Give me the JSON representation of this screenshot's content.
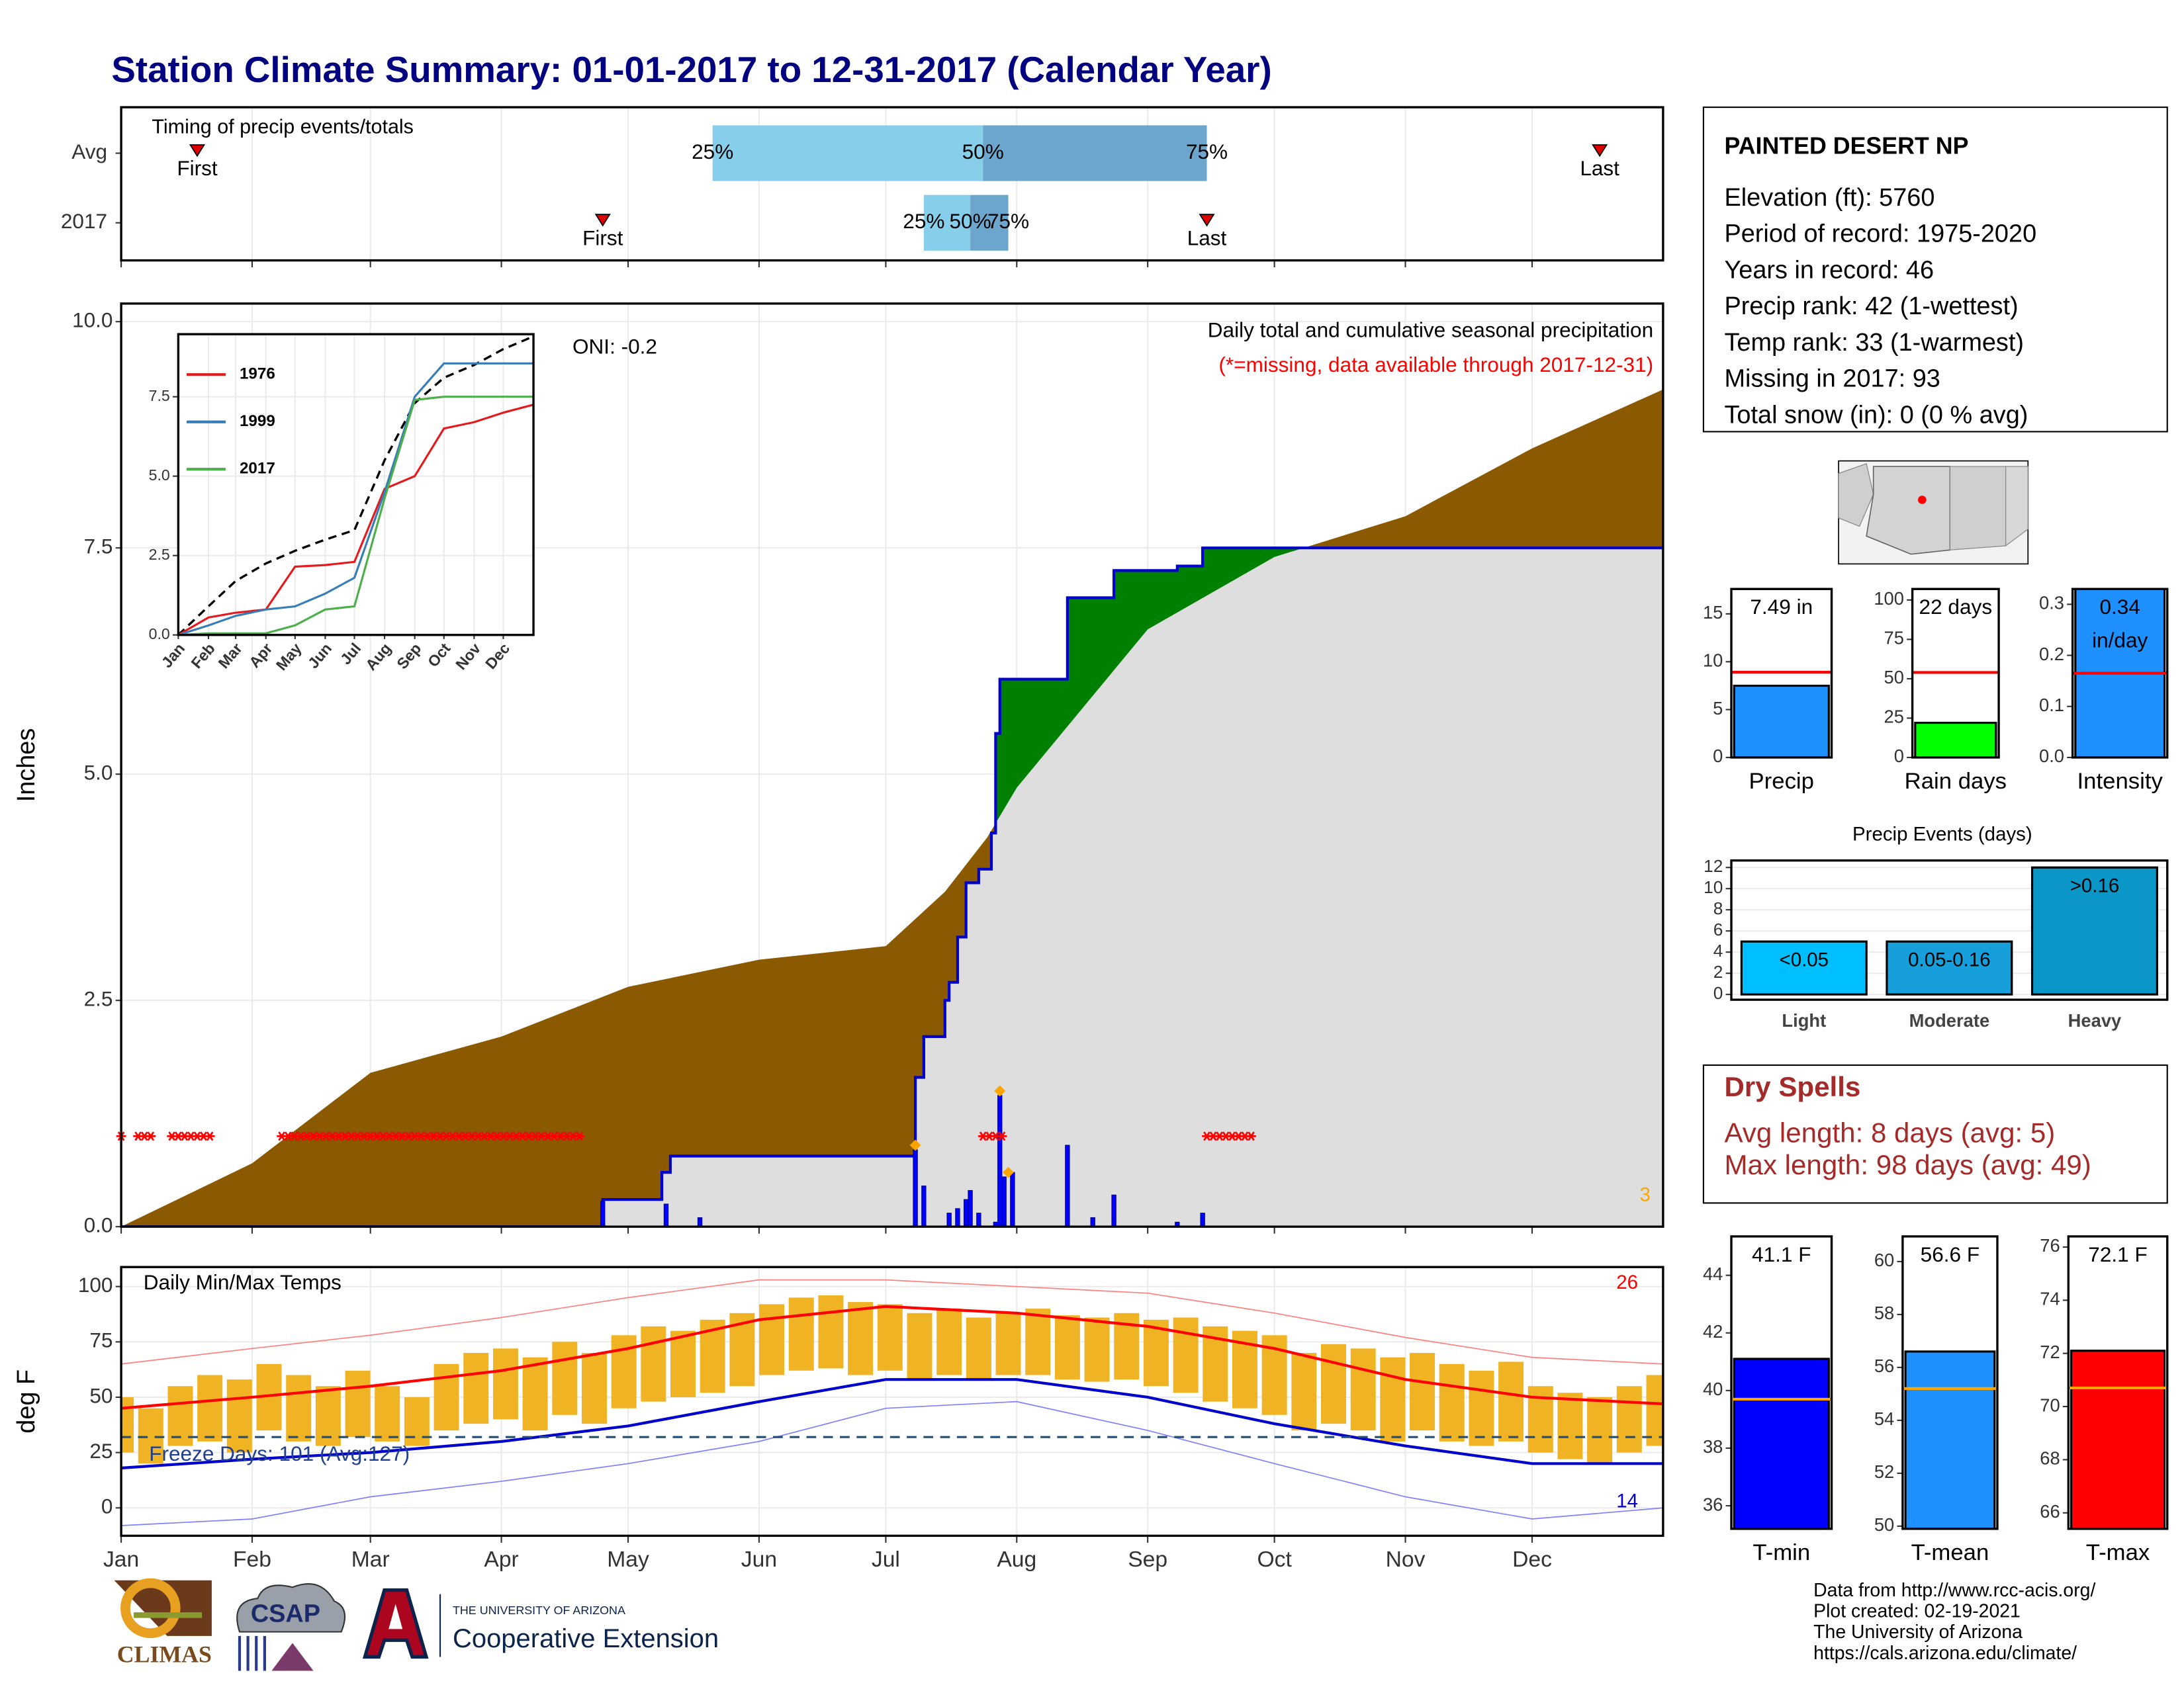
{
  "title": "Station Climate Summary: 01-01-2017 to 12-31-2017 (Calendar Year)",
  "station": {
    "name": "PAINTED DESERT NP",
    "lines": [
      "Elevation (ft): 5760",
      "Period of record: 1975-2020",
      "Years in record: 46",
      "Precip rank: 42 (1-wettest)",
      "Temp rank: 33 (1-warmest)",
      "Missing in 2017: 93",
      "Total snow (in): 0 (0 % avg)"
    ]
  },
  "dry_spells": {
    "title": "Dry Spells",
    "lines": [
      "Avg length: 8 days (avg: 5)",
      "Max length: 98 days (avg: 49)"
    ]
  },
  "logos": {
    "climas": "CLIMAS",
    "csap": "CSAP",
    "university": "THE UNIVERSITY OF ARIZONA",
    "extension": "Cooperative Extension"
  },
  "footer": [
    "Data from http://www.rcc-acis.org/",
    "Plot created: 02-19-2021",
    "The University of Arizona",
    "https://cals.arizona.edu/climate/"
  ],
  "chart_data": [
    {
      "type": "timing",
      "title": "Timing of precip events/totals",
      "xlim": [
        0,
        365
      ],
      "xticks": [
        0,
        31,
        59,
        90,
        120,
        151,
        181,
        212,
        243,
        273,
        304,
        334
      ],
      "labels": [
        "First",
        "25%",
        "50%",
        "75%",
        "Last"
      ],
      "colors": [
        "#87ceeb",
        "#6ca6cd"
      ],
      "marker_color": "#dd0000",
      "series": [
        {
          "name": "Avg",
          "values": [
            18,
            140,
            204,
            257,
            350
          ]
        },
        {
          "name": "2017",
          "values": [
            114,
            190,
            201,
            210,
            257
          ]
        }
      ]
    },
    {
      "type": "cumulative",
      "ylabel": "Inches",
      "xlim": [
        0,
        365
      ],
      "ylim": [
        0,
        10.2
      ],
      "xticks": [
        0,
        31,
        59,
        90,
        120,
        151,
        181,
        212,
        243,
        273,
        304,
        334
      ],
      "yticks": [
        {
          "value": 0,
          "label": "0.0"
        },
        2.5,
        {
          "value": 5,
          "label": "5.0"
        },
        7.5,
        {
          "value": 10,
          "label": "10.0"
        }
      ],
      "grid": true,
      "oni": "ONI: -0.2",
      "subtitle": "Daily total and cumulative seasonal precipitation",
      "missing_note": "(*=missing, data available through 2017-12-31)",
      "count": 3,
      "average": {
        "x": [
          0,
          31,
          59,
          90,
          120,
          151,
          181,
          195,
          205,
          212,
          243,
          273,
          304,
          334,
          365
        ],
        "values": [
          0,
          0.7,
          1.7,
          2.1,
          2.65,
          2.95,
          3.1,
          3.7,
          4.3,
          4.85,
          6.6,
          7.4,
          7.85,
          8.6,
          9.25
        ],
        "color": "#8b5a00"
      },
      "observed": {
        "x": [
          0,
          114,
          128,
          130,
          188,
          190,
          195,
          196,
          198,
          200,
          203,
          206,
          207,
          208,
          224,
          235,
          250,
          256,
          365
        ],
        "values": [
          0,
          0.3,
          0.6,
          0.78,
          1.65,
          2.1,
          2.5,
          2.7,
          3.2,
          3.8,
          3.95,
          4.35,
          5.45,
          6.05,
          6.95,
          7.25,
          7.3,
          7.5,
          7.5
        ],
        "color": "#0000cd",
        "above_color": "#008000",
        "below_color": "#dedede"
      },
      "daily": {
        "x": [
          114,
          129,
          137,
          188,
          190,
          196,
          198,
          200,
          201,
          203,
          207,
          208,
          209,
          211,
          224,
          230,
          235,
          250,
          256
        ],
        "values": [
          0.28,
          0.25,
          0.1,
          0.85,
          0.45,
          0.15,
          0.2,
          0.3,
          0.4,
          0.15,
          0.05,
          1.45,
          0.55,
          0.6,
          0.9,
          0.1,
          0.35,
          0.05,
          0.15
        ],
        "color": "#0000ff"
      },
      "extremes": {
        "x": [
          188,
          208,
          210
        ],
        "values": [
          0.9,
          1.5,
          0.6
        ],
        "color": "#ffa500"
      },
      "missing": {
        "ranges": [
          [
            0,
            1
          ],
          [
            4,
            8
          ],
          [
            12,
            21
          ],
          [
            38,
            109
          ],
          [
            204,
            209
          ],
          [
            257,
            268
          ]
        ],
        "y": 1.0,
        "color": "#ff0000"
      }
    },
    {
      "type": "line",
      "xlim": [
        0,
        365
      ],
      "ylim": [
        0,
        9.47
      ],
      "yticks": [
        {
          "value": 0,
          "label": "0.0"
        },
        2.5,
        {
          "value": 5,
          "label": "5.0"
        },
        7.5
      ],
      "xticks": [
        {
          "value": 0,
          "label": "Jan"
        },
        {
          "value": 31,
          "label": "Feb"
        },
        {
          "value": 59,
          "label": "Mar"
        },
        {
          "value": 90,
          "label": "Apr"
        },
        {
          "value": 120,
          "label": "May"
        },
        {
          "value": 151,
          "label": "Jun"
        },
        {
          "value": 181,
          "label": "Jul"
        },
        {
          "value": 212,
          "label": "Aug"
        },
        {
          "value": 243,
          "label": "Sep"
        },
        {
          "value": 273,
          "label": "Oct"
        },
        {
          "value": 304,
          "label": "Nov"
        },
        {
          "value": 334,
          "label": "Dec"
        }
      ],
      "x": [
        0,
        31,
        59,
        90,
        120,
        151,
        181,
        212,
        243,
        273,
        304,
        334,
        365
      ],
      "series": [
        {
          "name": "1976",
          "color": "#e41a1c",
          "values": [
            0,
            0.55,
            0.7,
            0.8,
            2.15,
            2.2,
            2.3,
            4.6,
            5.0,
            6.5,
            6.7,
            7.0,
            7.25
          ]
        },
        {
          "name": "1999",
          "color": "#377eb8",
          "values": [
            0,
            0.3,
            0.6,
            0.8,
            0.9,
            1.3,
            1.8,
            4.5,
            7.5,
            8.55,
            8.55,
            8.55,
            8.55
          ]
        },
        {
          "name": "2017",
          "color": "#4daf4a",
          "values": [
            0,
            0.05,
            0.05,
            0.05,
            0.3,
            0.8,
            0.9,
            4.3,
            7.4,
            7.5,
            7.5,
            7.5,
            7.5
          ]
        }
      ],
      "average": {
        "values": [
          0,
          0.9,
          1.7,
          2.25,
          2.65,
          3.0,
          3.3,
          5.5,
          7.3,
          8.1,
          8.5,
          9.0,
          9.4
        ],
        "color": "#000000"
      }
    },
    {
      "type": "summary_bar",
      "categories": [
        "Precip"
      ],
      "values": [
        7.49
      ],
      "value_labels": [
        "7.49 in"
      ],
      "average": 8.9,
      "color": "#1e90ff",
      "avg_color": "#ff0000",
      "ylim": [
        0,
        17.6
      ],
      "yticks": [
        0,
        5,
        10,
        15
      ]
    },
    {
      "type": "summary_bar",
      "categories": [
        "Rain days"
      ],
      "values": [
        22
      ],
      "value_labels": [
        "22 days"
      ],
      "average": 54,
      "color": "#00ff00",
      "avg_color": "#ff0000",
      "ylim": [
        0,
        107
      ],
      "yticks": [
        0,
        25,
        50,
        75,
        100
      ]
    },
    {
      "type": "summary_bar",
      "categories": [
        "Intensity"
      ],
      "values": [
        0.34
      ],
      "value_labels": [
        "0.34\nin/day"
      ],
      "average": 0.165,
      "color": "#1e90ff",
      "avg_color": "#ff0000",
      "ylim": [
        0,
        0.33
      ],
      "yticks": [
        {
          "value": 0,
          "label": "0.0"
        },
        0.1,
        0.2,
        0.3
      ]
    },
    {
      "type": "bar",
      "title": "Precip Events (days)",
      "categories": [
        "Light",
        "Moderate",
        "Heavy"
      ],
      "values": [
        5,
        5,
        12
      ],
      "bar_labels": [
        "<0.05",
        "0.05-0.16",
        ">0.16"
      ],
      "colors": [
        "#00bfff",
        "#169fdb",
        "#0b96c8"
      ],
      "ylim": [
        -0.5,
        12.66
      ],
      "yticks": [
        0,
        2,
        4,
        6,
        8,
        10,
        12
      ],
      "grid": true
    },
    {
      "type": "temps",
      "title": "Daily Min/Max Temps",
      "ylabel": "deg F",
      "hot_days": 26,
      "cold_days": 14,
      "freeze_note": "Freeze Days: 101 (Avg:127)",
      "freeze_line": 32,
      "xlim": [
        0,
        365
      ],
      "ylim": [
        -12.6,
        108.8
      ],
      "yticks": [
        0,
        25,
        50,
        75,
        100
      ],
      "grid": true,
      "xticks": [
        {
          "value": 0,
          "label": "Jan"
        },
        {
          "value": 31,
          "label": "Feb"
        },
        {
          "value": 59,
          "label": "Mar"
        },
        {
          "value": 90,
          "label": "Apr"
        },
        {
          "value": 120,
          "label": "May"
        },
        {
          "value": 151,
          "label": "Jun"
        },
        {
          "value": 181,
          "label": "Jul"
        },
        {
          "value": 212,
          "label": "Aug"
        },
        {
          "value": 243,
          "label": "Sep"
        },
        {
          "value": 273,
          "label": "Oct"
        },
        {
          "value": 304,
          "label": "Nov"
        },
        {
          "value": 334,
          "label": "Dec"
        }
      ],
      "daily": {
        "x": [
          0,
          7,
          14,
          21,
          28,
          35,
          42,
          49,
          56,
          63,
          70,
          77,
          84,
          91,
          98,
          105,
          112,
          119,
          126,
          133,
          140,
          147,
          154,
          161,
          168,
          175,
          182,
          189,
          196,
          203,
          210,
          217,
          224,
          231,
          238,
          245,
          252,
          259,
          266,
          273,
          280,
          287,
          294,
          301,
          308,
          315,
          322,
          329,
          336,
          343,
          350,
          357,
          364
        ],
        "max": [
          50,
          45,
          55,
          60,
          58,
          65,
          60,
          55,
          62,
          55,
          50,
          65,
          70,
          72,
          68,
          75,
          70,
          78,
          82,
          80,
          85,
          88,
          92,
          95,
          96,
          93,
          92,
          88,
          90,
          86,
          88,
          90,
          87,
          86,
          88,
          85,
          86,
          82,
          80,
          78,
          70,
          74,
          72,
          68,
          70,
          65,
          62,
          66,
          55,
          52,
          50,
          55,
          60
        ],
        "min": [
          25,
          20,
          28,
          30,
          25,
          35,
          30,
          28,
          32,
          30,
          28,
          35,
          38,
          40,
          35,
          42,
          38,
          45,
          48,
          50,
          52,
          55,
          60,
          62,
          63,
          60,
          62,
          58,
          60,
          58,
          60,
          60,
          58,
          57,
          58,
          55,
          52,
          48,
          45,
          42,
          35,
          38,
          35,
          30,
          35,
          30,
          28,
          30,
          25,
          22,
          20,
          25,
          28
        ],
        "color": "#f0b323"
      },
      "normals": {
        "x": [
          0,
          31,
          59,
          90,
          120,
          151,
          181,
          212,
          243,
          273,
          304,
          334,
          365
        ],
        "max": [
          45,
          50,
          55,
          62,
          72,
          85,
          91,
          88,
          82,
          72,
          58,
          50,
          47
        ],
        "min": [
          18,
          22,
          25,
          30,
          37,
          48,
          58,
          58,
          50,
          38,
          28,
          20,
          20
        ],
        "max_color": "#ff0000",
        "min_color": "#0000cd"
      },
      "records": {
        "x": [
          0,
          31,
          59,
          90,
          120,
          151,
          181,
          212,
          243,
          273,
          304,
          334,
          365
        ],
        "max": [
          65,
          72,
          78,
          86,
          95,
          103,
          103,
          100,
          97,
          88,
          77,
          68,
          65
        ],
        "min": [
          -8,
          -5,
          5,
          12,
          20,
          30,
          45,
          48,
          35,
          20,
          5,
          -5,
          0
        ]
      }
    },
    {
      "type": "summary_bar",
      "categories": [
        "T-min"
      ],
      "values": [
        41.1
      ],
      "value_labels": [
        "41.1 F"
      ],
      "average": 39.7,
      "color": "#0000ff",
      "avg_color": "#ffa500",
      "ylim": [
        35.2,
        45.35
      ],
      "yticks": [
        36,
        38,
        40,
        42,
        44
      ]
    },
    {
      "type": "summary_bar",
      "categories": [
        "T-mean"
      ],
      "values": [
        56.6
      ],
      "value_labels": [
        "56.6 F"
      ],
      "average": 55.2,
      "color": "#1e90ff",
      "avg_color": "#ffa500",
      "ylim": [
        49.9,
        60.95
      ],
      "yticks": [
        50,
        52,
        54,
        56,
        58,
        60
      ]
    },
    {
      "type": "summary_bar",
      "categories": [
        "T-max"
      ],
      "values": [
        72.1
      ],
      "value_labels": [
        "72.1 F"
      ],
      "average": 70.7,
      "color": "#ff0000",
      "avg_color": "#ffa500",
      "ylim": [
        65.4,
        76.4
      ],
      "yticks": [
        66,
        68,
        70,
        72,
        74,
        76
      ]
    }
  ]
}
